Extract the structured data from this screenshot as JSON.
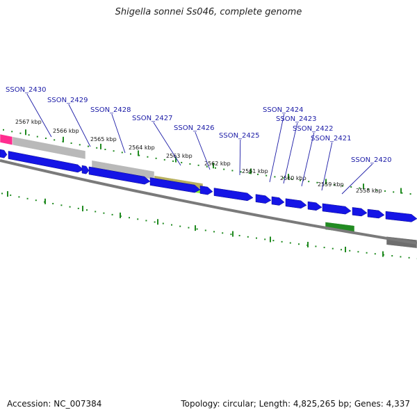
{
  "title": "Shigella sonnei Ss046, complete genome",
  "accession": "Accession: NC_007384",
  "summary": "Topology: circular; Length: 4,825,265 bp; Genes: 4,337",
  "colors": {
    "cds": "#1515e6",
    "gene_label": "#1a1aa6",
    "tick": "#1f8a1f",
    "backbone": "#7a7a7a",
    "pink": "#ff2d8f",
    "grey_feature": "#b9b9b9",
    "olive": "#b8b060",
    "lime": "#8cf03c",
    "dark_green": "#228b22",
    "dark_grey": "#6e6e6e"
  },
  "kbp_ticks": [
    "2567 kbp",
    "2566 kbp",
    "2565 kbp",
    "2564 kbp",
    "2563 kbp",
    "2562 kbp",
    "2561 kbp",
    "2560 kbp",
    "2559 kbp",
    "2558 kbp"
  ],
  "genes": [
    "SSON_2430",
    "SSON_2429",
    "SSON_2428",
    "SSON_2427",
    "SSON_2426",
    "SSON_2425",
    "SSON_2424",
    "SSON_2423",
    "SSON_2422",
    "SSON_2421",
    "SSON_2420"
  ]
}
